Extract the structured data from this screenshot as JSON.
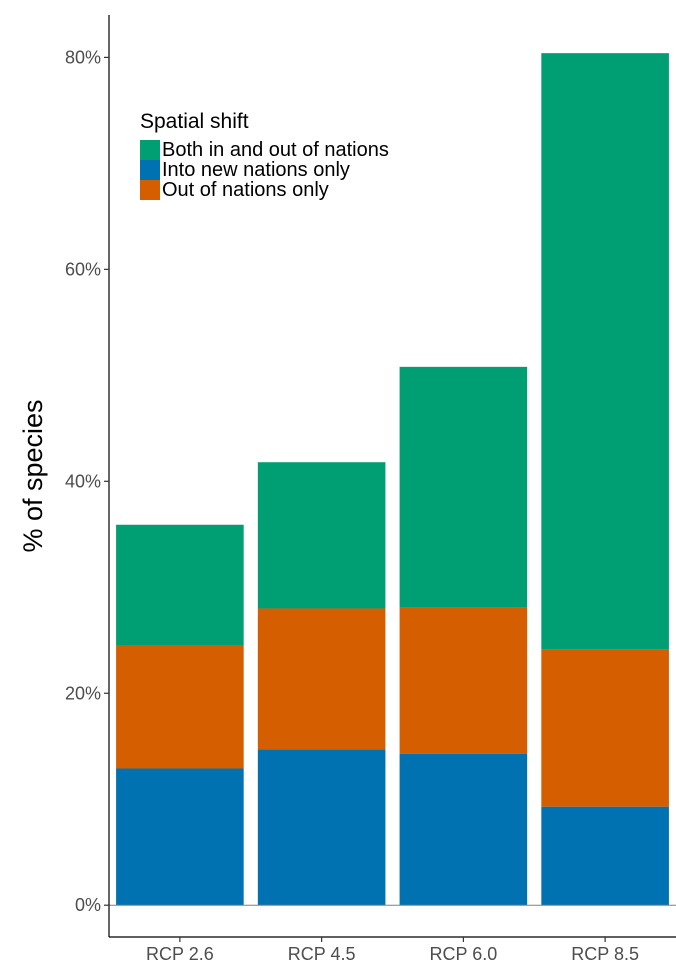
{
  "chart_data": {
    "type": "bar",
    "stacked": true,
    "categories": [
      "RCP 2.6",
      "RCP 4.5",
      "RCP 6.0",
      "RCP 8.5"
    ],
    "series": [
      {
        "name": "Into new nations only",
        "color": "#0072B2",
        "values": [
          12.9,
          14.7,
          14.3,
          9.3
        ]
      },
      {
        "name": "Out of nations only",
        "color": "#D55E00",
        "values": [
          11.6,
          13.3,
          13.8,
          14.8
        ]
      },
      {
        "name": "Both in and out of nations",
        "color": "#009E73",
        "values": [
          11.4,
          13.8,
          22.7,
          56.3
        ]
      }
    ],
    "ylabel": "% of species",
    "xlabel": "",
    "ylim": [
      -3,
      84
    ],
    "yticks": [
      0,
      20,
      40,
      60,
      80
    ],
    "ytick_labels": [
      "0%",
      "20%",
      "40%",
      "60%",
      "80%"
    ],
    "legend": {
      "title": "Spatial shift",
      "placement": "top-left",
      "order": [
        "Both in and out of nations",
        "Into new nations only",
        "Out of nations only"
      ]
    },
    "grid": false
  }
}
